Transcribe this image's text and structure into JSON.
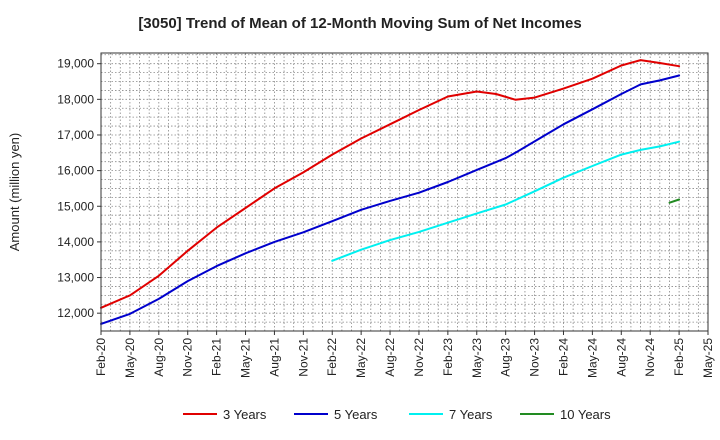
{
  "chart_data": {
    "type": "line",
    "title": "[3050]  Trend of Mean of 12-Month Moving Sum of Net Incomes",
    "xlabel": "",
    "ylabel": "Amount (million yen)",
    "ylim": [
      11500,
      19300
    ],
    "yticks": [
      12000,
      13000,
      14000,
      15000,
      16000,
      17000,
      18000,
      19000
    ],
    "ytick_labels": [
      "12,000",
      "13,000",
      "14,000",
      "15,000",
      "16,000",
      "17,000",
      "18,000",
      "19,000"
    ],
    "x_start": "Feb-20",
    "x_end": "May-25",
    "xtick_labels": [
      "Feb-20",
      "May-20",
      "Aug-20",
      "Nov-20",
      "Feb-21",
      "May-21",
      "Aug-21",
      "Nov-21",
      "Feb-22",
      "May-22",
      "Aug-22",
      "Nov-22",
      "Feb-23",
      "May-23",
      "Aug-23",
      "Nov-23",
      "Feb-24",
      "May-24",
      "Aug-24",
      "Nov-24",
      "Feb-25",
      "May-25"
    ],
    "grid": true,
    "legend_position": "bottom",
    "series": [
      {
        "name": "3 Years",
        "color": "#e00000",
        "points": [
          [
            "Feb-20",
            12150
          ],
          [
            "May-20",
            12500
          ],
          [
            "Aug-20",
            13050
          ],
          [
            "Nov-20",
            13750
          ],
          [
            "Feb-21",
            14400
          ],
          [
            "May-21",
            14950
          ],
          [
            "Aug-21",
            15500
          ],
          [
            "Nov-21",
            15950
          ],
          [
            "Feb-22",
            16450
          ],
          [
            "May-22",
            16900
          ],
          [
            "Aug-22",
            17300
          ],
          [
            "Nov-22",
            17700
          ],
          [
            "Feb-23",
            18080
          ],
          [
            "May-23",
            18220
          ],
          [
            "Jul-23",
            18150
          ],
          [
            "Sep-23",
            17990
          ],
          [
            "Nov-23",
            18050
          ],
          [
            "Feb-24",
            18300
          ],
          [
            "May-24",
            18580
          ],
          [
            "Aug-24",
            18950
          ],
          [
            "Oct-24",
            19100
          ],
          [
            "Dec-24",
            19020
          ],
          [
            "Feb-25",
            18930
          ]
        ]
      },
      {
        "name": "5 Years",
        "color": "#0000cc",
        "points": [
          [
            "Feb-20",
            11700
          ],
          [
            "May-20",
            11980
          ],
          [
            "Aug-20",
            12400
          ],
          [
            "Nov-20",
            12900
          ],
          [
            "Feb-21",
            13320
          ],
          [
            "May-21",
            13680
          ],
          [
            "Aug-21",
            14000
          ],
          [
            "Nov-21",
            14270
          ],
          [
            "Feb-22",
            14580
          ],
          [
            "May-22",
            14900
          ],
          [
            "Aug-22",
            15150
          ],
          [
            "Nov-22",
            15380
          ],
          [
            "Feb-23",
            15680
          ],
          [
            "May-23",
            16020
          ],
          [
            "Aug-23",
            16350
          ],
          [
            "Sep-23",
            16500
          ],
          [
            "Nov-23",
            16820
          ],
          [
            "Feb-24",
            17300
          ],
          [
            "May-24",
            17720
          ],
          [
            "Aug-24",
            18150
          ],
          [
            "Oct-24",
            18420
          ],
          [
            "Dec-24",
            18530
          ],
          [
            "Feb-25",
            18670
          ]
        ]
      },
      {
        "name": "7 Years",
        "color": "#00f0f0",
        "points": [
          [
            "Feb-22",
            13470
          ],
          [
            "May-22",
            13780
          ],
          [
            "Aug-22",
            14050
          ],
          [
            "Nov-22",
            14280
          ],
          [
            "Feb-23",
            14540
          ],
          [
            "May-23",
            14800
          ],
          [
            "Aug-23",
            15050
          ],
          [
            "Nov-23",
            15420
          ],
          [
            "Feb-24",
            15800
          ],
          [
            "May-24",
            16130
          ],
          [
            "Aug-24",
            16450
          ],
          [
            "Oct-24",
            16580
          ],
          [
            "Dec-24",
            16680
          ],
          [
            "Feb-25",
            16810
          ]
        ]
      },
      {
        "name": "10 Years",
        "color": "#228b22",
        "points": [
          [
            "Jan-25",
            15100
          ],
          [
            "Feb-25",
            15190
          ]
        ]
      }
    ]
  }
}
